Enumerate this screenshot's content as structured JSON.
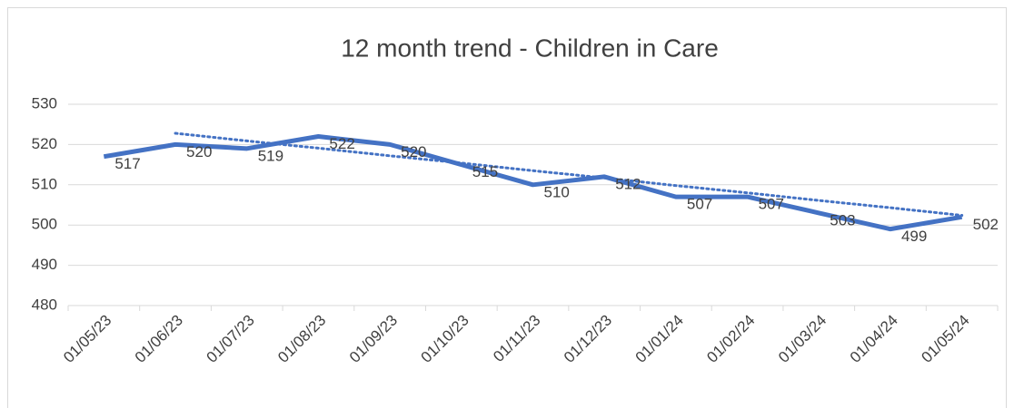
{
  "chart_data": {
    "type": "line",
    "title": "12 month trend - Children in Care",
    "categories": [
      "01/05/23",
      "01/06/23",
      "01/07/23",
      "01/08/23",
      "01/09/23",
      "01/10/23",
      "01/11/23",
      "01/12/23",
      "01/01/24",
      "01/02/24",
      "01/03/24",
      "01/04/24",
      "01/05/24"
    ],
    "series": [
      {
        "color": "#4472c4",
        "values": [
          517,
          520,
          519,
          522,
          520,
          515,
          510,
          512,
          507,
          507,
          503,
          499,
          502
        ]
      }
    ],
    "trendline": {
      "color": "#4472c4",
      "style": "dotted",
      "values": [
        null,
        522.8,
        520.9,
        519.1,
        517.2,
        515.4,
        513.5,
        511.7,
        509.8,
        508.0,
        506.1,
        504.3,
        502.4
      ]
    },
    "ylim": [
      480,
      530
    ],
    "yticks": [
      480,
      490,
      500,
      510,
      520,
      530
    ],
    "grid": true,
    "data_labels": true
  }
}
